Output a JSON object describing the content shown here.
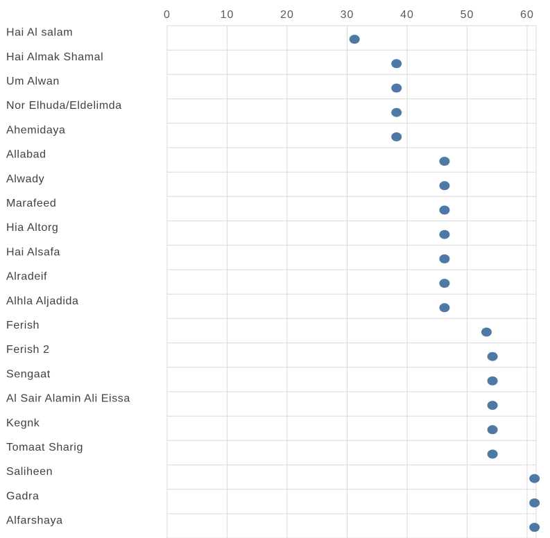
{
  "chart_data": {
    "type": "scatter",
    "title": "",
    "xlabel": "",
    "ylabel": "",
    "xlim": [
      0,
      63
    ],
    "x_ticks": [
      "0",
      "10",
      "20",
      "30",
      "40",
      "50",
      "60"
    ],
    "grid": true,
    "color": "#4e79a7",
    "categories": [
      "Hai Al salam",
      "Hai Almak Shamal",
      "Um Alwan",
      "Nor Elhuda/Eldelimda",
      "Ahemidaya",
      "Allabad",
      "Alwady",
      "Marafeed",
      "Hia Altorg",
      "Hai Alsafa",
      "Alradeif",
      "Alhla Aljadida",
      "Ferish",
      "Ferish 2",
      "Sengaat",
      "Al Sair Alamin Ali Eissa",
      "Kegnk",
      "Tomaat Sharig",
      "Saliheen",
      "Gadra",
      "Alfarshaya"
    ],
    "values": [
      31,
      38,
      38,
      38,
      38,
      46,
      46,
      46,
      46,
      46,
      46,
      46,
      53,
      54,
      54,
      54,
      54,
      54,
      61,
      61,
      61
    ]
  }
}
